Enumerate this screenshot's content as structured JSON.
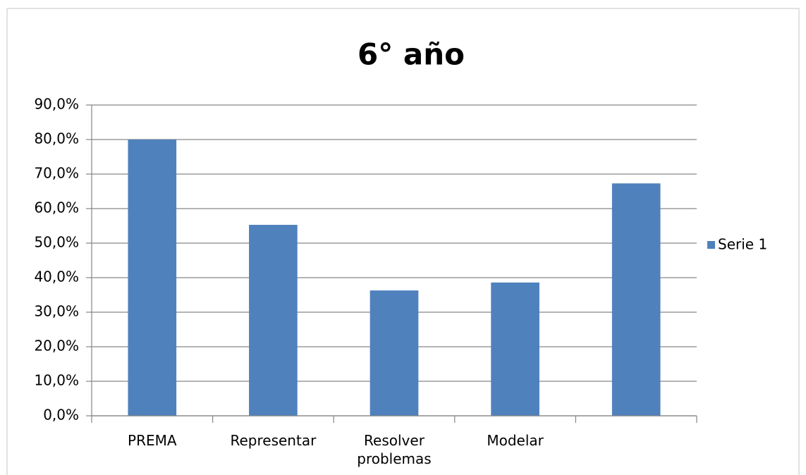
{
  "chart_data": {
    "type": "bar",
    "title": "6° año",
    "categories": [
      "PREMA",
      "Representar",
      "Resolver problemas",
      "Modelar",
      null
    ],
    "series": [
      {
        "name": "Serie 1",
        "color": "#4f81bd",
        "values": [
          80.0,
          55.3,
          36.3,
          38.6,
          67.3
        ]
      }
    ],
    "ylim": [
      0,
      90
    ],
    "yticks": [
      {
        "value": 0,
        "label": "0,0%"
      },
      {
        "value": 10,
        "label": "10,0%"
      },
      {
        "value": 20,
        "label": "20,0%"
      },
      {
        "value": 30,
        "label": "30,0%"
      },
      {
        "value": 40,
        "label": "40,0%"
      },
      {
        "value": 50,
        "label": "50,0%"
      },
      {
        "value": 60,
        "label": "60,0%"
      },
      {
        "value": 70,
        "label": "70,0%"
      },
      {
        "value": 80,
        "label": "80,0%"
      },
      {
        "value": 90,
        "label": "90,0%"
      }
    ],
    "grid": true,
    "legend": "right"
  }
}
